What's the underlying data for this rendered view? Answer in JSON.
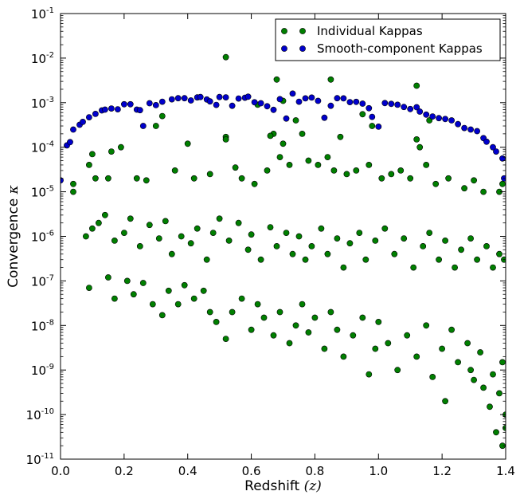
{
  "chart_data": {
    "type": "scatter",
    "title": "",
    "xlabel": "Redshift",
    "xlabel_math": "(z)",
    "ylabel": "Convergence",
    "ylabel_math": "κ",
    "xlim": [
      0.0,
      1.4
    ],
    "ylim": [
      1e-11,
      0.1
    ],
    "yscale": "log",
    "grid": false,
    "legend_position": "upper-right",
    "x_ticks": [
      {
        "value": 0.0,
        "label": "0.0"
      },
      {
        "value": 0.2,
        "label": "0.2"
      },
      {
        "value": 0.4,
        "label": "0.4"
      },
      {
        "value": 0.6,
        "label": "0.6"
      },
      {
        "value": 0.8,
        "label": "0.8"
      },
      {
        "value": 1.0,
        "label": "1.0"
      },
      {
        "value": 1.2,
        "label": "1.2"
      },
      {
        "value": 1.4,
        "label": "1.4"
      }
    ],
    "y_ticks": [
      {
        "value": 1e-11,
        "base": "10",
        "exp": "-11"
      },
      {
        "value": 1e-10,
        "base": "10",
        "exp": "-10"
      },
      {
        "value": 1e-09,
        "base": "10",
        "exp": "-9"
      },
      {
        "value": 1e-08,
        "base": "10",
        "exp": "-8"
      },
      {
        "value": 1e-07,
        "base": "10",
        "exp": "-7"
      },
      {
        "value": 1e-06,
        "base": "10",
        "exp": "-6"
      },
      {
        "value": 1e-05,
        "base": "10",
        "exp": "-5"
      },
      {
        "value": 0.0001,
        "base": "10",
        "exp": "-4"
      },
      {
        "value": 0.001,
        "base": "10",
        "exp": "-3"
      },
      {
        "value": 0.01,
        "base": "10",
        "exp": "-2"
      },
      {
        "value": 0.1,
        "base": "10",
        "exp": "-1"
      }
    ],
    "series": [
      {
        "name": "Individual Kappas",
        "color": "#007f00",
        "edge_color": "#000000",
        "note_sampled": true,
        "points": [
          [
            0.52,
            0.0105
          ],
          [
            0.68,
            0.0033
          ],
          [
            0.85,
            0.0033
          ],
          [
            1.12,
            0.0024
          ],
          [
            0.62,
            0.0009
          ],
          [
            0.7,
            0.0011
          ],
          [
            0.95,
            0.00055
          ],
          [
            0.98,
            0.0003
          ],
          [
            0.32,
            0.0005
          ],
          [
            0.74,
            0.0004
          ],
          [
            1.16,
            0.0004
          ],
          [
            0.3,
            0.0003
          ],
          [
            0.76,
            0.0002
          ],
          [
            0.67,
            0.0002
          ],
          [
            0.52,
            0.00017
          ],
          [
            0.66,
            0.00018
          ],
          [
            0.88,
            0.00017
          ],
          [
            1.12,
            0.00015
          ],
          [
            1.13,
            0.0001
          ],
          [
            0.52,
            0.00015
          ],
          [
            0.4,
            0.00012
          ],
          [
            0.7,
            0.00012
          ],
          [
            0.19,
            0.0001
          ],
          [
            0.16,
            8e-05
          ],
          [
            0.1,
            7e-05
          ],
          [
            0.04,
            1.5e-05
          ],
          [
            0.04,
            1e-05
          ],
          [
            0.09,
            4e-05
          ],
          [
            0.11,
            2e-05
          ],
          [
            0.15,
            2e-05
          ],
          [
            0.24,
            2e-05
          ],
          [
            0.27,
            1.8e-05
          ],
          [
            0.36,
            3e-05
          ],
          [
            0.42,
            2e-05
          ],
          [
            0.47,
            2.5e-05
          ],
          [
            0.55,
            3.5e-05
          ],
          [
            0.57,
            2e-05
          ],
          [
            0.61,
            1.5e-05
          ],
          [
            0.65,
            3e-05
          ],
          [
            0.69,
            6e-05
          ],
          [
            0.72,
            4e-05
          ],
          [
            0.78,
            5e-05
          ],
          [
            0.81,
            4e-05
          ],
          [
            0.84,
            6e-05
          ],
          [
            0.86,
            3e-05
          ],
          [
            0.9,
            2.5e-05
          ],
          [
            0.93,
            3e-05
          ],
          [
            0.97,
            4e-05
          ],
          [
            1.01,
            2e-05
          ],
          [
            1.04,
            2.5e-05
          ],
          [
            1.07,
            3e-05
          ],
          [
            1.1,
            2e-05
          ],
          [
            1.15,
            4e-05
          ],
          [
            1.18,
            1.5e-05
          ],
          [
            1.22,
            2e-05
          ],
          [
            1.27,
            1.2e-05
          ],
          [
            1.3,
            1.8e-05
          ],
          [
            1.33,
            1e-05
          ],
          [
            1.38,
            1e-05
          ],
          [
            1.39,
            1.5e-05
          ],
          [
            0.08,
            1e-06
          ],
          [
            0.1,
            1.5e-06
          ],
          [
            0.12,
            2e-06
          ],
          [
            0.14,
            3e-06
          ],
          [
            0.17,
            8e-07
          ],
          [
            0.2,
            1.2e-06
          ],
          [
            0.22,
            2.5e-06
          ],
          [
            0.25,
            6e-07
          ],
          [
            0.28,
            1.8e-06
          ],
          [
            0.31,
            9e-07
          ],
          [
            0.33,
            2.2e-06
          ],
          [
            0.35,
            4e-07
          ],
          [
            0.38,
            1e-06
          ],
          [
            0.41,
            7e-07
          ],
          [
            0.43,
            1.5e-06
          ],
          [
            0.46,
            3e-07
          ],
          [
            0.48,
            1.2e-06
          ],
          [
            0.5,
            2.5e-06
          ],
          [
            0.53,
            8e-07
          ],
          [
            0.56,
            2e-06
          ],
          [
            0.59,
            5e-07
          ],
          [
            0.6,
            1.1e-06
          ],
          [
            0.63,
            3e-07
          ],
          [
            0.66,
            1.6e-06
          ],
          [
            0.68,
            6e-07
          ],
          [
            0.71,
            1.2e-06
          ],
          [
            0.73,
            4e-07
          ],
          [
            0.75,
            1e-06
          ],
          [
            0.77,
            3e-07
          ],
          [
            0.79,
            6e-07
          ],
          [
            0.82,
            1.5e-06
          ],
          [
            0.84,
            4e-07
          ],
          [
            0.87,
            9e-07
          ],
          [
            0.89,
            2e-07
          ],
          [
            0.91,
            7e-07
          ],
          [
            0.94,
            1.2e-06
          ],
          [
            0.96,
            3e-07
          ],
          [
            0.99,
            8e-07
          ],
          [
            1.02,
            1.5e-06
          ],
          [
            1.05,
            4e-07
          ],
          [
            1.08,
            9e-07
          ],
          [
            1.11,
            2e-07
          ],
          [
            1.14,
            6e-07
          ],
          [
            1.16,
            1.2e-06
          ],
          [
            1.19,
            3e-07
          ],
          [
            1.21,
            8e-07
          ],
          [
            1.24,
            2e-07
          ],
          [
            1.26,
            5e-07
          ],
          [
            1.29,
            9e-07
          ],
          [
            1.31,
            3e-07
          ],
          [
            1.34,
            6e-07
          ],
          [
            1.36,
            2e-07
          ],
          [
            1.38,
            4e-07
          ],
          [
            1.395,
            3e-07
          ],
          [
            0.09,
            7e-08
          ],
          [
            0.15,
            1.2e-07
          ],
          [
            0.17,
            4e-08
          ],
          [
            0.21,
            1e-07
          ],
          [
            0.23,
            5e-08
          ],
          [
            0.26,
            9e-08
          ],
          [
            0.29,
            3e-08
          ],
          [
            0.32,
            1.7e-08
          ],
          [
            0.34,
            6e-08
          ],
          [
            0.37,
            3e-08
          ],
          [
            0.39,
            8e-08
          ],
          [
            0.42,
            4e-08
          ],
          [
            0.45,
            6e-08
          ],
          [
            0.47,
            2e-08
          ],
          [
            0.49,
            1.2e-08
          ],
          [
            0.52,
            5e-09
          ],
          [
            0.54,
            2e-08
          ],
          [
            0.57,
            4e-08
          ],
          [
            0.6,
            8e-09
          ],
          [
            0.62,
            3e-08
          ],
          [
            0.64,
            1.5e-08
          ],
          [
            0.67,
            6e-09
          ],
          [
            0.69,
            2e-08
          ],
          [
            0.72,
            4e-09
          ],
          [
            0.74,
            1e-08
          ],
          [
            0.76,
            3e-08
          ],
          [
            0.78,
            7e-09
          ],
          [
            0.8,
            1.5e-08
          ],
          [
            0.83,
            3e-09
          ],
          [
            0.85,
            2e-08
          ],
          [
            0.87,
            8e-09
          ],
          [
            0.89,
            2e-09
          ],
          [
            0.92,
            6e-09
          ],
          [
            0.95,
            1.5e-08
          ],
          [
            0.97,
            8e-10
          ],
          [
            0.99,
            3e-09
          ],
          [
            1.0,
            1.2e-08
          ],
          [
            1.03,
            4e-09
          ],
          [
            1.06,
            1e-09
          ],
          [
            1.09,
            6e-09
          ],
          [
            1.12,
            2e-09
          ],
          [
            1.15,
            1e-08
          ],
          [
            1.17,
            7e-10
          ],
          [
            1.2,
            3e-09
          ],
          [
            1.23,
            8e-09
          ],
          [
            1.25,
            1.5e-09
          ],
          [
            1.28,
            4e-09
          ],
          [
            1.3,
            6e-10
          ],
          [
            1.32,
            2.5e-09
          ],
          [
            1.35,
            1.5e-10
          ],
          [
            1.36,
            8e-10
          ],
          [
            1.37,
            4e-11
          ],
          [
            1.38,
            3e-10
          ],
          [
            1.39,
            2e-11
          ],
          [
            1.4,
            1e-10
          ],
          [
            1.39,
            1.5e-09
          ],
          [
            1.4,
            5e-11
          ],
          [
            1.33,
            4e-10
          ],
          [
            1.29,
            1e-09
          ],
          [
            1.21,
            2e-10
          ]
        ]
      },
      {
        "name": "Smooth-component Kappas",
        "color": "#0000cc",
        "edge_color": "#000000",
        "points": [
          [
            0.0,
            1.8e-05
          ],
          [
            0.02,
            0.00011
          ],
          [
            0.03,
            0.00013
          ],
          [
            0.04,
            0.00025
          ],
          [
            0.06,
            0.00032
          ],
          [
            0.07,
            0.00037
          ],
          [
            0.09,
            0.00047
          ],
          [
            0.11,
            0.00056
          ],
          [
            0.13,
            0.00067
          ],
          [
            0.14,
            0.0007
          ],
          [
            0.16,
            0.00074
          ],
          [
            0.18,
            0.00071
          ],
          [
            0.2,
            0.00092
          ],
          [
            0.22,
            0.00092
          ],
          [
            0.24,
            0.0007
          ],
          [
            0.25,
            0.00068
          ],
          [
            0.26,
            0.0003
          ],
          [
            0.28,
            0.00097
          ],
          [
            0.3,
            0.00088
          ],
          [
            0.32,
            0.00105
          ],
          [
            0.35,
            0.00119
          ],
          [
            0.37,
            0.00126
          ],
          [
            0.39,
            0.00126
          ],
          [
            0.41,
            0.00112
          ],
          [
            0.43,
            0.00131
          ],
          [
            0.44,
            0.00134
          ],
          [
            0.46,
            0.00118
          ],
          [
            0.47,
            0.00107
          ],
          [
            0.49,
            0.00089
          ],
          [
            0.5,
            0.00134
          ],
          [
            0.52,
            0.00132
          ],
          [
            0.54,
            0.00085
          ],
          [
            0.56,
            0.00124
          ],
          [
            0.58,
            0.00129
          ],
          [
            0.59,
            0.00136
          ],
          [
            0.61,
            0.00102
          ],
          [
            0.63,
            0.00097
          ],
          [
            0.65,
            0.00083
          ],
          [
            0.67,
            0.00069
          ],
          [
            0.69,
            0.0012
          ],
          [
            0.71,
            0.00044
          ],
          [
            0.73,
            0.0016
          ],
          [
            0.75,
            0.00105
          ],
          [
            0.77,
            0.00125
          ],
          [
            0.79,
            0.0013
          ],
          [
            0.81,
            0.0011
          ],
          [
            0.83,
            0.00046
          ],
          [
            0.85,
            0.00085
          ],
          [
            0.87,
            0.00126
          ],
          [
            0.89,
            0.00125
          ],
          [
            0.91,
            0.00103
          ],
          [
            0.93,
            0.00104
          ],
          [
            0.95,
            0.00095
          ],
          [
            0.97,
            0.00075
          ],
          [
            0.98,
            0.00048
          ],
          [
            1.0,
            0.00029
          ],
          [
            1.02,
            0.00098
          ],
          [
            1.04,
            0.00094
          ],
          [
            1.06,
            0.0009
          ],
          [
            1.08,
            0.0008
          ],
          [
            1.1,
            0.00072
          ],
          [
            1.12,
            0.00079
          ],
          [
            1.13,
            0.00063
          ],
          [
            1.15,
            0.00054
          ],
          [
            1.17,
            0.00049
          ],
          [
            1.19,
            0.00045
          ],
          [
            1.21,
            0.00043
          ],
          [
            1.23,
            0.0004
          ],
          [
            1.25,
            0.00033
          ],
          [
            1.27,
            0.00027
          ],
          [
            1.29,
            0.00025
          ],
          [
            1.31,
            0.00023
          ],
          [
            1.33,
            0.00016
          ],
          [
            1.34,
            0.000133
          ],
          [
            1.36,
            0.0001
          ],
          [
            1.37,
            8e-05
          ],
          [
            1.39,
            5.6e-05
          ],
          [
            1.395,
            2e-05
          ]
        ]
      }
    ]
  }
}
